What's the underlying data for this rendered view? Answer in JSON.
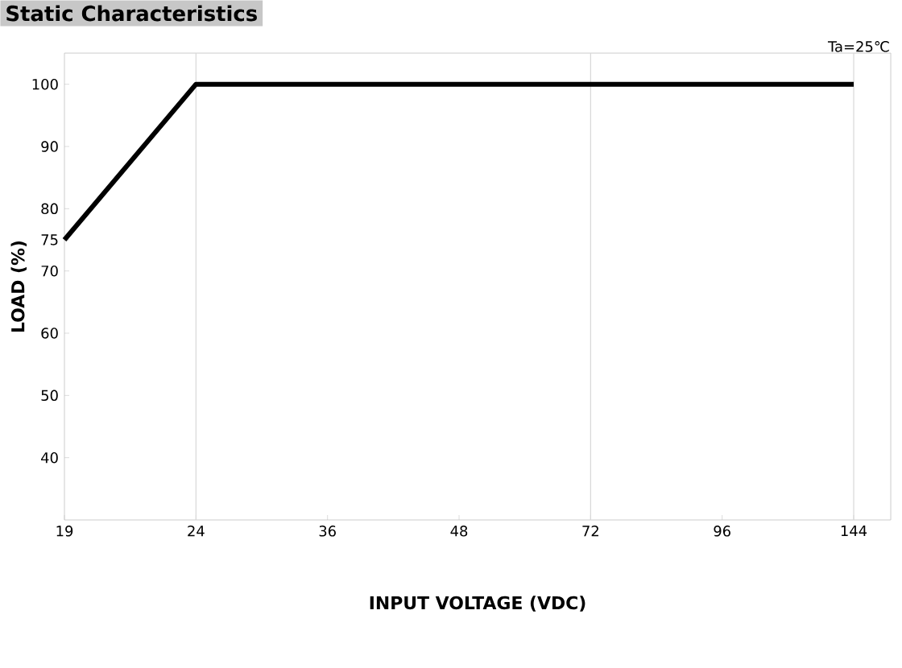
{
  "chart_data": {
    "type": "line",
    "title": "Static Characteristics",
    "xlabel": "INPUT VOLTAGE (VDC)",
    "ylabel": "LOAD (%)",
    "annotations": [
      "Ta=25℃"
    ],
    "categories": [
      "19",
      "24",
      "36",
      "48",
      "72",
      "96",
      "144"
    ],
    "series": [
      {
        "color": "#000000",
        "values": [
          75,
          100,
          100,
          100,
          100,
          100,
          100
        ]
      }
    ],
    "ylim": [
      30,
      105
    ],
    "yticks": [
      40,
      50,
      60,
      70,
      75,
      80,
      90,
      100
    ],
    "ref_lines": [
      {
        "axis": "x",
        "value": "24",
        "color": "#d8d8d8"
      },
      {
        "axis": "x",
        "value": "72",
        "color": "#d8d8d8"
      },
      {
        "axis": "x",
        "value": "144",
        "color": "#d8d8d8"
      }
    ],
    "marker": "none",
    "line_style": "solid"
  }
}
